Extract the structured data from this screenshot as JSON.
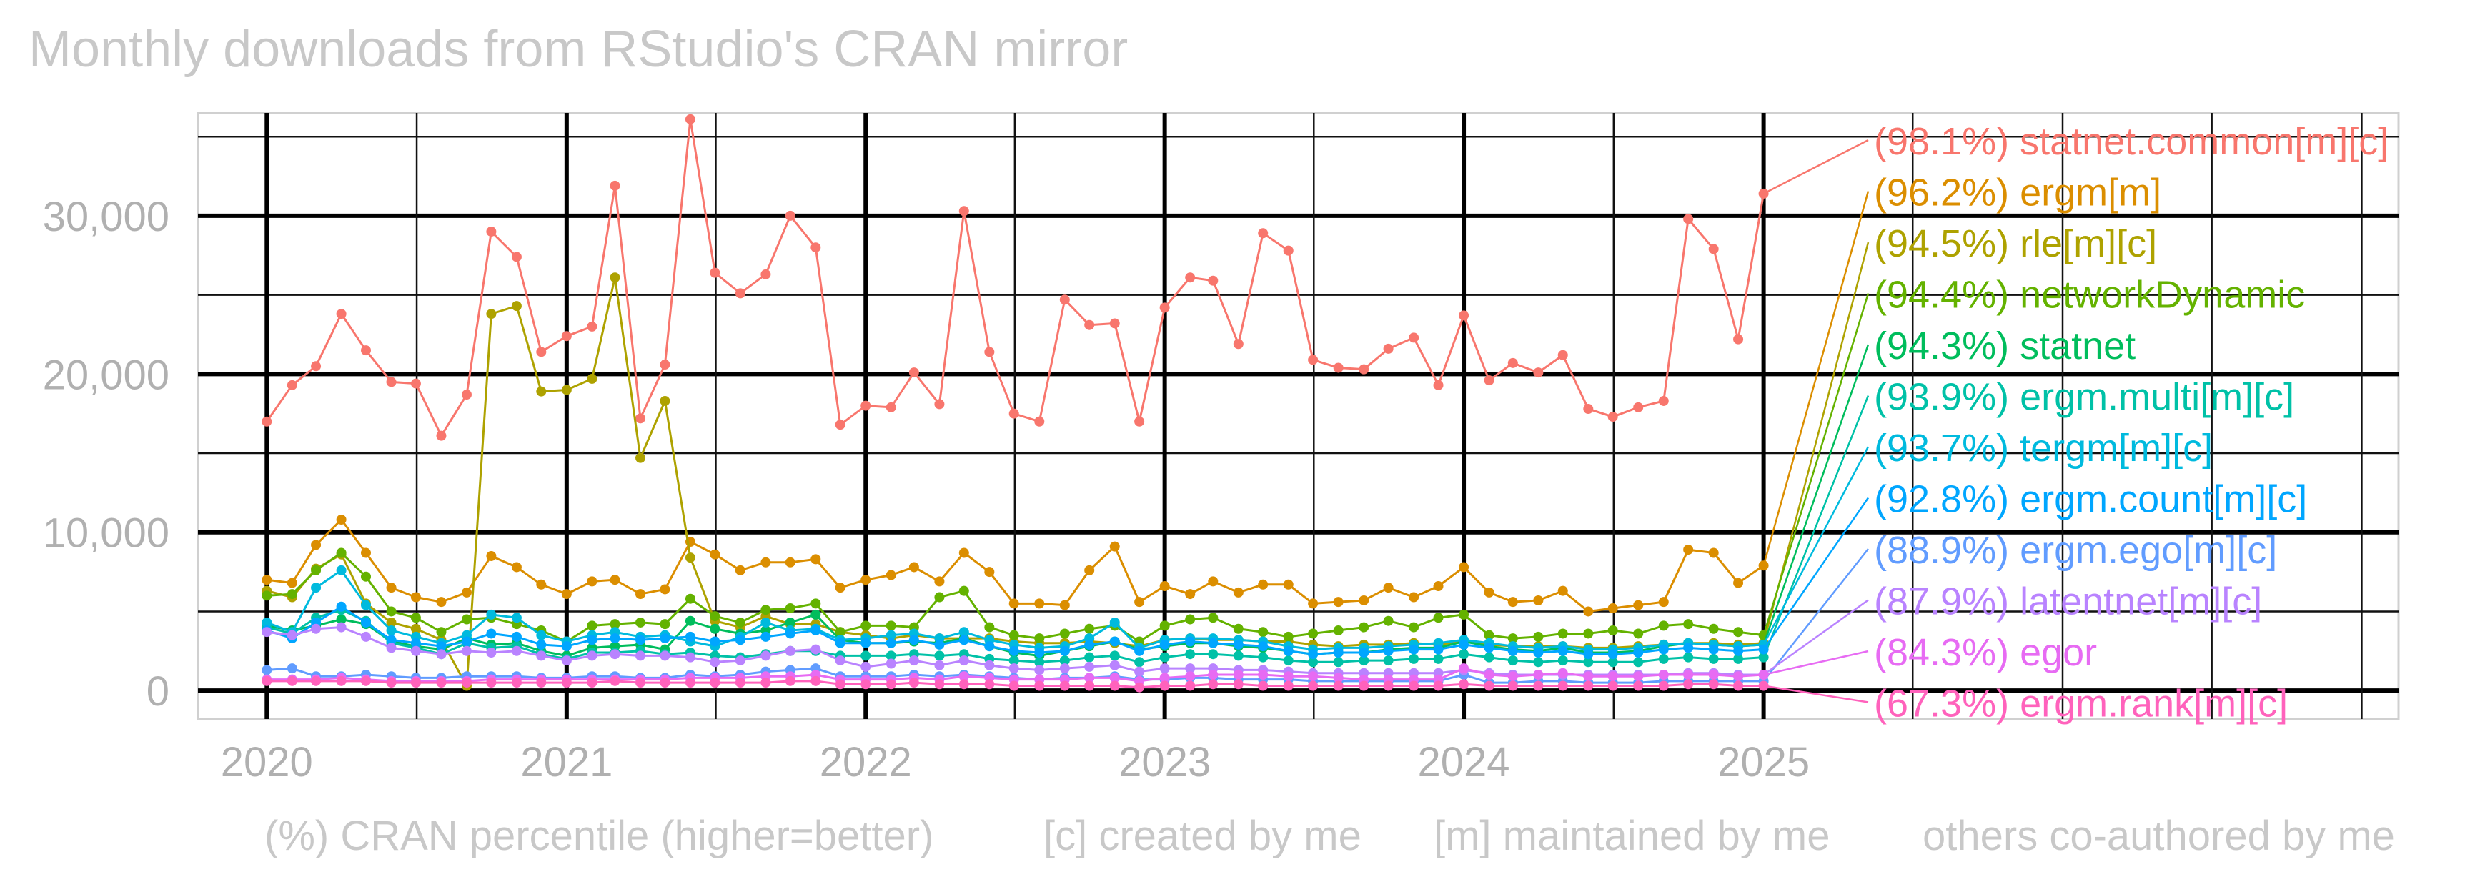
{
  "chart_data": {
    "type": "line",
    "title": "Monthly downloads from RStudio's CRAN mirror",
    "xlabel": "",
    "ylabel": "",
    "grid": true,
    "legend": "right, direct labels",
    "x_ticks": [
      "2020",
      "2021",
      "2022",
      "2023",
      "2024",
      "2025"
    ],
    "y_ticks": [
      "0",
      "10,000",
      "20,000",
      "30,000"
    ],
    "y_tick_values": [
      0,
      10000,
      20000,
      30000
    ],
    "ylim": [
      -1800,
      36500
    ],
    "xlim": [
      "2019-10-09",
      "2027-02-15"
    ],
    "x_start": "2020-01",
    "caption": [
      "(%) CRAN percentile (higher=better)",
      "[c] created by me",
      "[m] maintained by me",
      "others co-authored by me"
    ],
    "series": [
      {
        "name": "statnet.common[m][c]",
        "percentile": "(98.1%)",
        "color": "#F8766D",
        "values": [
          17000,
          19300,
          20500,
          23800,
          21500,
          19500,
          19400,
          16100,
          18700,
          29000,
          27400,
          21400,
          22400,
          23000,
          31900,
          17200,
          20600,
          36100,
          26400,
          25100,
          26300,
          30000,
          28000,
          16800,
          18000,
          17900,
          20100,
          18100,
          30300,
          21400,
          17500,
          17000,
          24700,
          23100,
          23200,
          17000,
          24200,
          26100,
          25900,
          21900,
          28900,
          27800,
          20900,
          20400,
          20300,
          21600,
          22300,
          19300,
          23700,
          19600,
          20700,
          20100,
          21200,
          17800,
          17300,
          17900,
          18300,
          29800,
          27900,
          22200,
          31400
        ]
      },
      {
        "name": "ergm[m]",
        "percentile": "(96.2%)",
        "color": "#DB8E00",
        "values": [
          7000,
          6800,
          9200,
          10800,
          8700,
          6500,
          5900,
          5600,
          6200,
          8500,
          7800,
          6700,
          6100,
          6900,
          7000,
          6100,
          6400,
          9400,
          8600,
          7600,
          8100,
          8100,
          8300,
          6500,
          7000,
          7300,
          7800,
          6900,
          8700,
          7500,
          5500,
          5500,
          5400,
          7600,
          9100,
          5600,
          6600,
          6100,
          6900,
          6200,
          6700,
          6700,
          5500,
          5600,
          5700,
          6500,
          5900,
          6600,
          7800,
          6200,
          5600,
          5700,
          6300,
          5000,
          5200,
          5400,
          5600,
          8900,
          8700,
          6800,
          7900
        ]
      },
      {
        "name": "rle[m][c]",
        "percentile": "(94.5%)",
        "color": "#AEA200",
        "values": [
          6300,
          5900,
          7700,
          8600,
          5500,
          4300,
          3900,
          3200,
          300,
          23800,
          24300,
          18900,
          19000,
          19700,
          26100,
          14700,
          18300,
          8400,
          4400,
          4000,
          4700,
          4200,
          4200,
          3700,
          3500,
          3300,
          3500,
          3300,
          3300,
          3300,
          3100,
          3000,
          3000,
          3100,
          3000,
          2800,
          3200,
          3300,
          3200,
          3200,
          3100,
          3100,
          2900,
          2800,
          2900,
          2900,
          3000,
          2900,
          3100,
          2900,
          2800,
          2800,
          2800,
          2700,
          2700,
          2800,
          2900,
          3000,
          3000,
          2900,
          3000
        ]
      },
      {
        "name": "networkDynamic",
        "percentile": "(94.4%)",
        "color": "#64B200",
        "values": [
          6000,
          6100,
          7600,
          8700,
          7200,
          5000,
          4600,
          3700,
          4500,
          4600,
          4200,
          3800,
          3100,
          4100,
          4200,
          4300,
          4200,
          5800,
          4700,
          4300,
          5100,
          5200,
          5500,
          3700,
          4100,
          4100,
          4000,
          5900,
          6300,
          4000,
          3500,
          3300,
          3600,
          3900,
          4100,
          3100,
          4100,
          4500,
          4600,
          3900,
          3700,
          3400,
          3600,
          3800,
          4000,
          4400,
          4000,
          4600,
          4800,
          3500,
          3300,
          3400,
          3600,
          3600,
          3800,
          3600,
          4100,
          4200,
          3900,
          3700,
          3500
        ]
      },
      {
        "name": "statnet",
        "percentile": "(94.3%)",
        "color": "#00BD5C",
        "values": [
          4100,
          3800,
          4100,
          4500,
          4200,
          3100,
          2800,
          2600,
          3300,
          2900,
          3000,
          2500,
          2200,
          2700,
          2800,
          2900,
          2600,
          4400,
          3900,
          3600,
          3800,
          4300,
          4800,
          3200,
          3000,
          3000,
          3100,
          3000,
          3300,
          2800,
          2400,
          2200,
          2500,
          2800,
          3100,
          2600,
          2800,
          3000,
          3000,
          2800,
          2700,
          2500,
          2300,
          2400,
          2400,
          2600,
          2700,
          2700,
          3100,
          2800,
          2600,
          2500,
          2700,
          2400,
          2400,
          2500,
          2800,
          3000,
          2900,
          2800,
          2900
        ]
      },
      {
        "name": "ergm.multi[m][c]",
        "percentile": "(93.9%)",
        "color": "#00C1A7",
        "values": [
          4000,
          3600,
          4600,
          5100,
          4400,
          3000,
          2700,
          2300,
          3000,
          2700,
          2800,
          2300,
          2000,
          2400,
          2400,
          2500,
          2300,
          2400,
          2200,
          2100,
          2300,
          2500,
          2500,
          2200,
          2200,
          2200,
          2300,
          2200,
          2300,
          2000,
          1900,
          1800,
          1900,
          2100,
          2200,
          1800,
          2100,
          2300,
          2300,
          2200,
          2100,
          1900,
          1800,
          1800,
          1900,
          1900,
          2000,
          2000,
          2300,
          2100,
          1900,
          1800,
          1900,
          1800,
          1800,
          1800,
          2000,
          2100,
          2000,
          2000,
          2100
        ]
      },
      {
        "name": "tergm[m][c]",
        "percentile": "(93.7%)",
        "color": "#00BADE",
        "values": [
          4300,
          3700,
          6500,
          7600,
          5400,
          3800,
          3400,
          3000,
          3500,
          4800,
          4600,
          3500,
          3100,
          3500,
          3700,
          3400,
          3500,
          3100,
          2800,
          3400,
          4300,
          3800,
          3900,
          3200,
          3300,
          3500,
          3600,
          3300,
          3700,
          3200,
          2900,
          2700,
          2800,
          3300,
          4300,
          2700,
          3200,
          3300,
          3300,
          3200,
          3100,
          2800,
          2600,
          2700,
          2700,
          2800,
          2900,
          3000,
          3200,
          3000,
          2800,
          2700,
          2800,
          2600,
          2600,
          2700,
          2900,
          3000,
          2900,
          2800,
          2900
        ]
      },
      {
        "name": "ergm.count[m][c]",
        "percentile": "(92.8%)",
        "color": "#00A6FF",
        "values": [
          3800,
          3300,
          4300,
          5300,
          4300,
          3200,
          3000,
          2800,
          3100,
          3600,
          3400,
          2900,
          2800,
          3200,
          3300,
          3200,
          3300,
          3400,
          3100,
          3200,
          3400,
          3600,
          3800,
          3000,
          3000,
          3000,
          3200,
          2900,
          3200,
          2800,
          2500,
          2400,
          2500,
          2900,
          3100,
          2500,
          2900,
          3100,
          3000,
          2900,
          2800,
          2500,
          2300,
          2400,
          2400,
          2500,
          2600,
          2600,
          2900,
          2700,
          2500,
          2400,
          2500,
          2300,
          2300,
          2400,
          2600,
          2700,
          2600,
          2500,
          2600
        ]
      },
      {
        "name": "ergm.ego[m][c]",
        "percentile": "(88.9%)",
        "color": "#619CFF",
        "values": [
          1300,
          1400,
          900,
          900,
          1000,
          900,
          800,
          800,
          900,
          900,
          900,
          800,
          800,
          900,
          900,
          800,
          800,
          1000,
          900,
          1000,
          1200,
          1300,
          1400,
          900,
          900,
          900,
          1000,
          900,
          1000,
          900,
          800,
          700,
          800,
          800,
          900,
          700,
          700,
          800,
          800,
          700,
          700,
          700,
          600,
          600,
          600,
          600,
          600,
          600,
          1000,
          500,
          500,
          600,
          600,
          500,
          500,
          500,
          600,
          600,
          600,
          600,
          600
        ]
      },
      {
        "name": "latentnet[m][c]",
        "percentile": "(87.9%)",
        "color": "#B983FF",
        "values": [
          3700,
          3500,
          3900,
          4000,
          3400,
          2700,
          2500,
          2300,
          2500,
          2400,
          2500,
          2200,
          1900,
          2200,
          2300,
          2200,
          2200,
          2100,
          1800,
          1900,
          2200,
          2500,
          2600,
          1900,
          1500,
          1700,
          1900,
          1600,
          1900,
          1600,
          1400,
          1300,
          1400,
          1500,
          1600,
          1200,
          1400,
          1400,
          1400,
          1300,
          1300,
          1200,
          1100,
          1100,
          1100,
          1100,
          1100,
          1100,
          1300,
          1100,
          1000,
          1000,
          1000,
          1000,
          1000,
          1000,
          1000,
          1100,
          1100,
          1000,
          1000
        ]
      },
      {
        "name": "egor",
        "percentile": "(84.3%)",
        "color": "#E76BF3",
        "values": [
          700,
          700,
          700,
          800,
          700,
          600,
          600,
          600,
          600,
          700,
          700,
          700,
          700,
          700,
          700,
          700,
          700,
          800,
          800,
          800,
          900,
          900,
          1000,
          700,
          700,
          700,
          800,
          700,
          900,
          800,
          700,
          700,
          700,
          800,
          800,
          600,
          800,
          900,
          1000,
          1000,
          1000,
          900,
          900,
          800,
          700,
          700,
          700,
          700,
          1400,
          1000,
          900,
          1000,
          1100,
          900,
          900,
          900,
          1000,
          1000,
          1000,
          900,
          1000
        ]
      },
      {
        "name": "ergm.rank[m][c]",
        "percentile": "(67.3%)",
        "color": "#FF62BC",
        "values": [
          600,
          600,
          600,
          600,
          600,
          500,
          500,
          500,
          500,
          500,
          500,
          500,
          500,
          500,
          600,
          500,
          500,
          500,
          500,
          500,
          500,
          600,
          600,
          400,
          400,
          400,
          500,
          400,
          400,
          400,
          300,
          300,
          300,
          300,
          300,
          200,
          300,
          300,
          400,
          400,
          300,
          300,
          300,
          300,
          300,
          300,
          300,
          300,
          400,
          300,
          300,
          300,
          300,
          300,
          300,
          300,
          300,
          400,
          400,
          300,
          300
        ]
      }
    ]
  }
}
